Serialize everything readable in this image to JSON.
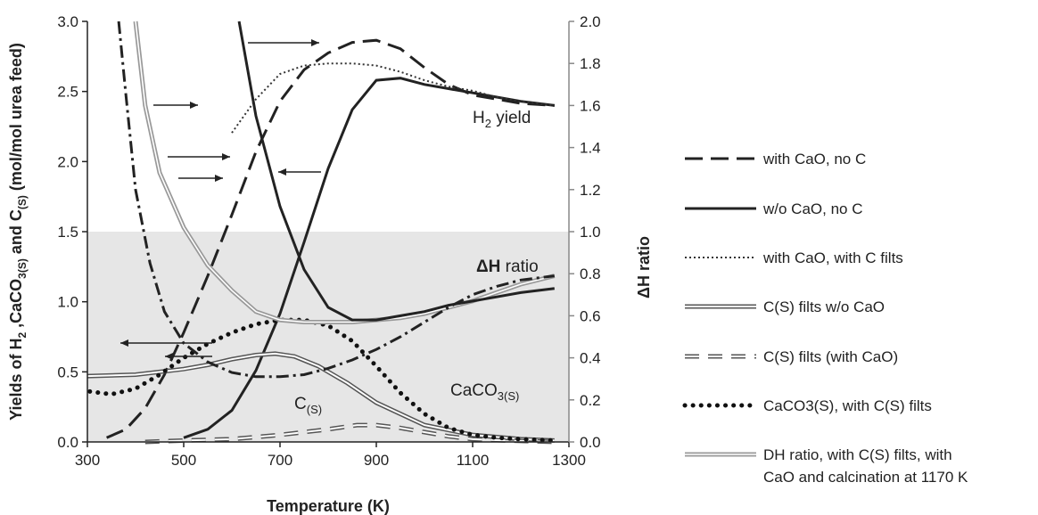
{
  "chart_data": {
    "type": "line",
    "xlabel": "Temperature (K)",
    "ylabel_left": "Yields of H2 ,CaCO3(S) and C(S) (mol/mol urea feed)",
    "ylabel_right": "ΔH ratio",
    "xlim": [
      300,
      1300
    ],
    "ylim_left": [
      0,
      3.0
    ],
    "ylim_right": [
      0,
      2.0
    ],
    "x_ticks": [
      "300",
      "500",
      "700",
      "900",
      "1100",
      "1300"
    ],
    "y_left_ticks": [
      "0.0",
      "0.5",
      "1.0",
      "1.5",
      "2.0",
      "2.5",
      "3.0"
    ],
    "y_right_ticks": [
      "0.0",
      "0.2",
      "0.4",
      "0.6",
      "0.8",
      "1.0",
      "1.2",
      "1.4",
      "1.6",
      "1.8",
      "2.0"
    ],
    "shaded_band_left": [
      0,
      1.5
    ],
    "grid": false,
    "legend_position": "right",
    "annotations": {
      "h2_yield": "H₂ yield",
      "dh_ratio": "ΔH ratio",
      "caco3": "CaCO₃₍S₎",
      "c_s": "C₍S₎"
    },
    "series": [
      {
        "name": "with CaO, no C",
        "axis": "right",
        "style": "longdash",
        "x": [
          340,
          380,
          420,
          460,
          500,
          550,
          600,
          650,
          700,
          750,
          800,
          850,
          900,
          950,
          1000,
          1050,
          1100,
          1150,
          1200,
          1270
        ],
        "y": [
          0.02,
          0.06,
          0.16,
          0.32,
          0.52,
          0.79,
          1.08,
          1.38,
          1.62,
          1.77,
          1.85,
          1.9,
          1.91,
          1.87,
          1.78,
          1.7,
          1.65,
          1.63,
          1.61,
          1.6
        ]
      },
      {
        "name": "w/o CaO, no C",
        "axis": "right",
        "style": "solid",
        "x": [
          500,
          550,
          600,
          650,
          700,
          750,
          800,
          850,
          900,
          950,
          1000,
          1050,
          1100,
          1150,
          1200,
          1270
        ],
        "y": [
          0.02,
          0.06,
          0.15,
          0.34,
          0.61,
          0.95,
          1.3,
          1.58,
          1.72,
          1.73,
          1.7,
          1.68,
          1.66,
          1.64,
          1.62,
          1.6
        ]
      },
      {
        "name": "with CaO, with C filts",
        "axis": "right",
        "style": "dotted",
        "x": [
          600,
          650,
          700,
          750,
          800,
          850,
          900,
          950,
          1000,
          1050,
          1100,
          1150,
          1200,
          1270
        ],
        "y": [
          1.47,
          1.63,
          1.75,
          1.79,
          1.8,
          1.8,
          1.79,
          1.76,
          1.72,
          1.69,
          1.67,
          1.64,
          1.62,
          1.6
        ]
      },
      {
        "name": "C(S) filts w/o CaO",
        "axis": "left",
        "style": "double",
        "x": [
          300,
          400,
          500,
          550,
          600,
          650,
          690,
          730,
          780,
          840,
          900,
          1000,
          1100,
          1200,
          1270
        ],
        "y": [
          0.47,
          0.48,
          0.52,
          0.55,
          0.59,
          0.62,
          0.63,
          0.61,
          0.54,
          0.42,
          0.28,
          0.12,
          0.05,
          0.02,
          0.01
        ]
      },
      {
        "name": "C(S) filts (with CaO)",
        "axis": "left",
        "style": "dashed-double",
        "x": [
          420,
          500,
          600,
          700,
          800,
          860,
          900,
          950,
          1000,
          1050,
          1100,
          1170,
          1270
        ],
        "y": [
          0.0,
          0.01,
          0.02,
          0.05,
          0.09,
          0.12,
          0.12,
          0.1,
          0.07,
          0.04,
          0.02,
          0.01,
          0.0
        ]
      },
      {
        "name": "CaCO3(S), with C(S) filts",
        "axis": "left",
        "style": "bigdots",
        "x": [
          305,
          350,
          400,
          450,
          500,
          550,
          600,
          650,
          700,
          750,
          800,
          850,
          900,
          950,
          1000,
          1050,
          1100,
          1150,
          1200,
          1270
        ],
        "y": [
          0.36,
          0.34,
          0.38,
          0.48,
          0.6,
          0.7,
          0.78,
          0.84,
          0.87,
          0.87,
          0.83,
          0.72,
          0.54,
          0.35,
          0.2,
          0.1,
          0.05,
          0.03,
          0.02,
          0.01
        ]
      },
      {
        "name": "DH ratio, with C(S) filts, with CaO and calcination at 1170 K",
        "axis": "right",
        "style": "double-gray",
        "x": [
          400,
          420,
          450,
          500,
          550,
          600,
          650,
          700,
          750,
          800,
          850,
          900,
          950,
          1000,
          1050,
          1100,
          1150,
          1200,
          1270
        ],
        "y": [
          2.0,
          1.6,
          1.28,
          1.02,
          0.84,
          0.72,
          0.62,
          0.58,
          0.57,
          0.57,
          0.57,
          0.58,
          0.59,
          0.61,
          0.64,
          0.67,
          0.71,
          0.75,
          0.79
        ]
      },
      {
        "name": "dash-dot (unlabeled)",
        "axis": "right",
        "style": "dashdot",
        "x": [
          365,
          380,
          400,
          430,
          460,
          500,
          550,
          600,
          650,
          700,
          750,
          800,
          850,
          900,
          950,
          1000,
          1050,
          1100,
          1150,
          1200,
          1270
        ],
        "y": [
          2.0,
          1.65,
          1.2,
          0.85,
          0.62,
          0.47,
          0.38,
          0.33,
          0.31,
          0.31,
          0.32,
          0.35,
          0.39,
          0.44,
          0.5,
          0.57,
          0.64,
          0.7,
          0.74,
          0.77,
          0.79
        ]
      },
      {
        "name": "solid heavy (unlabeled)",
        "axis": "right",
        "style": "solid",
        "x": [
          615,
          650,
          700,
          750,
          800,
          850,
          900,
          950,
          1000,
          1050,
          1100,
          1150,
          1200,
          1270
        ],
        "y": [
          2.0,
          1.55,
          1.12,
          0.82,
          0.64,
          0.58,
          0.58,
          0.6,
          0.62,
          0.65,
          0.67,
          0.69,
          0.71,
          0.73
        ]
      }
    ],
    "legend": [
      {
        "label": "with CaO, no C",
        "style": "longdash"
      },
      {
        "label": "w/o CaO, no C",
        "style": "solid"
      },
      {
        "label": "with CaO, with C filts",
        "style": "dotted"
      },
      {
        "label": "C(S) filts w/o CaO",
        "style": "double"
      },
      {
        "label": "C(S) filts (with CaO)",
        "style": "dashed-double"
      },
      {
        "label": "CaCO3(S), with C(S) filts",
        "style": "bigdots"
      },
      {
        "label": "DH ratio, with C(S) filts, with",
        "label2": "CaO and calcination at 1170 K",
        "style": "double-gray"
      }
    ]
  }
}
